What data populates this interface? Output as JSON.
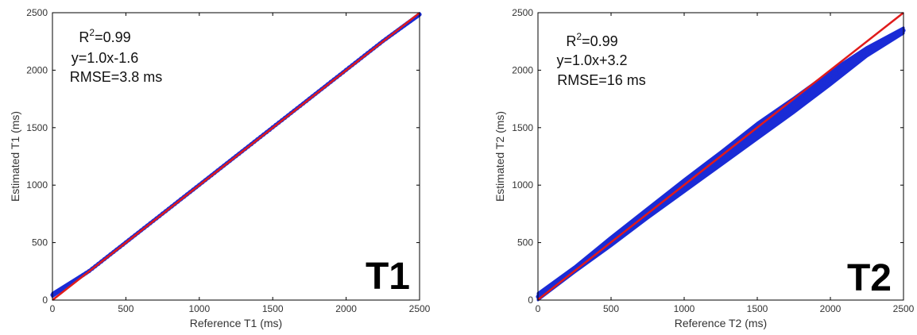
{
  "chart_data": [
    {
      "type": "scatter",
      "panel_label": "T1",
      "xlabel": "Reference T1 (ms)",
      "ylabel": "Estimated T1 (ms)",
      "xlim": [
        0,
        2500
      ],
      "ylim": [
        0,
        2500
      ],
      "xticks": [
        0,
        500,
        1000,
        1500,
        2000,
        2500
      ],
      "yticks": [
        0,
        500,
        1000,
        1500,
        2000,
        2500
      ],
      "grid": false,
      "annotations": {
        "r2_prefix": "R",
        "r2_sup": "2",
        "r2_value": "=0.99",
        "fit": "y=1.0x-1.6",
        "rmse": "RMSE=3.8 ms"
      },
      "series": [
        {
          "style": "scatter",
          "color": "#1a2bd6",
          "x": [
            0,
            250,
            500,
            750,
            1000,
            1250,
            1500,
            1750,
            2000,
            2250,
            2500
          ],
          "y_low": [
            30,
            245,
            495,
            745,
            995,
            1245,
            1495,
            1745,
            1995,
            2245,
            2475
          ],
          "y_high": [
            60,
            260,
            510,
            760,
            1010,
            1260,
            1510,
            1760,
            2010,
            2260,
            2495
          ]
        },
        {
          "style": "line",
          "color": "#e01b1b",
          "x": [
            0,
            2500
          ],
          "y": [
            -1.6,
            2498.4
          ]
        }
      ]
    },
    {
      "type": "scatter",
      "panel_label": "T2",
      "xlabel": "Reference T2 (ms)",
      "ylabel": "Estimated T2 (ms)",
      "xlim": [
        0,
        2500
      ],
      "ylim": [
        0,
        2500
      ],
      "xticks": [
        0,
        500,
        1000,
        1500,
        2000,
        2500
      ],
      "yticks": [
        0,
        500,
        1000,
        1500,
        2000,
        2500
      ],
      "grid": false,
      "annotations": {
        "r2_prefix": "R",
        "r2_sup": "2",
        "r2_value": "=0.99",
        "fit": "y=1.0x+3.2",
        "rmse": "RMSE=16 ms"
      },
      "series": [
        {
          "style": "scatter",
          "color": "#1a2bd6",
          "x": [
            0,
            250,
            500,
            750,
            1000,
            1250,
            1500,
            1750,
            2000,
            2250,
            2500
          ],
          "y_low": [
            0,
            240,
            470,
            710,
            940,
            1170,
            1400,
            1630,
            1870,
            2120,
            2320
          ],
          "y_high": [
            60,
            290,
            550,
            800,
            1050,
            1290,
            1540,
            1760,
            1990,
            2200,
            2370
          ]
        },
        {
          "style": "line",
          "color": "#e01b1b",
          "x": [
            0,
            2500
          ],
          "y": [
            3.2,
            2503.2
          ]
        }
      ]
    }
  ]
}
